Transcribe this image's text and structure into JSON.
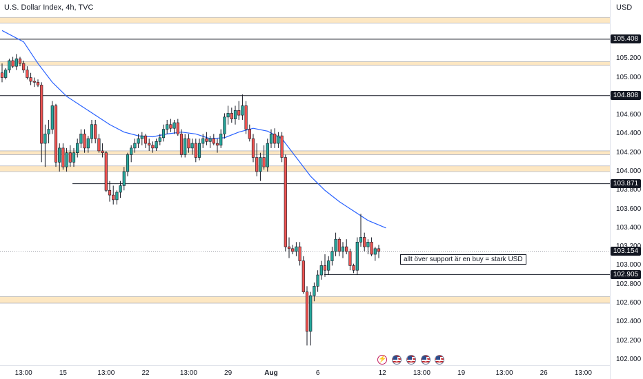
{
  "header": {
    "title": "U.S. Dollar Index, 4h, TVC",
    "currency": "USD"
  },
  "chart_data": {
    "type": "candlestick",
    "ylim": [
      101.94,
      105.825
    ],
    "y_ticks": [
      "105.200",
      "105.000",
      "104.600",
      "104.400",
      "104.200",
      "104.000",
      "103.800",
      "103.600",
      "103.400",
      "103.200",
      "103.000",
      "102.800",
      "102.600",
      "102.400",
      "102.200",
      "102.000"
    ],
    "x_ticks": [
      {
        "label": "13:00",
        "i": 6
      },
      {
        "label": "15",
        "i": 17
      },
      {
        "label": "13:00",
        "i": 29
      },
      {
        "label": "22",
        "i": 40
      },
      {
        "label": "13:00",
        "i": 52
      },
      {
        "label": "29",
        "i": 63
      },
      {
        "label": "Aug",
        "i": 75,
        "bold": true
      },
      {
        "label": "6",
        "i": 88
      },
      {
        "label": "12",
        "i": 106
      },
      {
        "label": "13:00",
        "i": 117
      },
      {
        "label": "19",
        "i": 128
      },
      {
        "label": "13:00",
        "i": 140
      },
      {
        "label": "26",
        "i": 151
      },
      {
        "label": "13:00",
        "i": 162
      }
    ],
    "horizontal_lines": [
      105.408,
      104.808,
      103.871,
      102.905
    ],
    "current_price_line": 103.154,
    "price_tags": [
      {
        "label": "105.408",
        "value": 105.408
      },
      {
        "label": "104.808",
        "value": 104.808
      },
      {
        "label": "103.871",
        "value": 103.871
      },
      {
        "label": "103.154",
        "value": 103.154
      },
      {
        "label": "102.905",
        "value": 102.905
      }
    ],
    "zones": [
      [
        105.58,
        105.64
      ],
      [
        105.13,
        105.17
      ],
      [
        104.18,
        104.22
      ],
      [
        104.0,
        104.06
      ],
      [
        102.6,
        102.67
      ]
    ],
    "annotation": "allt över support är en buy = stark USD",
    "candles": [
      [
        105.05,
        105.15,
        104.95,
        105.0
      ],
      [
        105.0,
        105.1,
        104.98,
        105.08
      ],
      [
        105.08,
        105.2,
        105.05,
        105.18
      ],
      [
        105.18,
        105.22,
        105.1,
        105.12
      ],
      [
        105.12,
        105.25,
        105.08,
        105.2
      ],
      [
        105.2,
        105.22,
        105.12,
        105.15
      ],
      [
        105.15,
        105.18,
        105.05,
        105.08
      ],
      [
        105.08,
        105.12,
        104.98,
        105.0
      ],
      [
        105.0,
        105.05,
        104.92,
        104.96
      ],
      [
        104.96,
        105.0,
        104.9,
        104.95
      ],
      [
        104.95,
        104.98,
        104.9,
        104.92
      ],
      [
        104.92,
        104.95,
        104.1,
        104.3
      ],
      [
        104.3,
        104.5,
        104.05,
        104.4
      ],
      [
        104.4,
        104.55,
        104.3,
        104.45
      ],
      [
        104.45,
        104.75,
        104.4,
        104.7
      ],
      [
        104.7,
        104.72,
        104.05,
        104.1
      ],
      [
        104.1,
        104.3,
        104.0,
        104.25
      ],
      [
        104.25,
        104.3,
        104.02,
        104.05
      ],
      [
        104.05,
        104.25,
        104.0,
        104.2
      ],
      [
        104.2,
        104.28,
        104.05,
        104.1
      ],
      [
        104.1,
        104.25,
        104.05,
        104.2
      ],
      [
        104.2,
        104.35,
        104.15,
        104.3
      ],
      [
        104.3,
        104.45,
        104.25,
        104.4
      ],
      [
        104.4,
        104.45,
        104.2,
        104.25
      ],
      [
        104.25,
        104.38,
        104.2,
        104.35
      ],
      [
        104.35,
        104.55,
        104.3,
        104.5
      ],
      [
        104.5,
        104.55,
        104.3,
        104.35
      ],
      [
        104.35,
        104.4,
        104.2,
        104.22
      ],
      [
        104.22,
        104.3,
        104.15,
        104.2
      ],
      [
        104.2,
        104.22,
        103.78,
        103.8
      ],
      [
        103.8,
        103.9,
        103.68,
        103.75
      ],
      [
        103.75,
        103.85,
        103.65,
        103.7
      ],
      [
        103.7,
        103.8,
        103.65,
        103.78
      ],
      [
        103.78,
        103.9,
        103.72,
        103.85
      ],
      [
        103.85,
        104.05,
        103.8,
        104.0
      ],
      [
        104.0,
        104.2,
        103.95,
        104.18
      ],
      [
        104.18,
        104.28,
        104.1,
        104.25
      ],
      [
        104.25,
        104.35,
        104.2,
        104.3
      ],
      [
        104.3,
        104.4,
        104.25,
        104.35
      ],
      [
        104.35,
        104.42,
        104.28,
        104.38
      ],
      [
        104.38,
        104.4,
        104.25,
        104.3
      ],
      [
        104.3,
        104.35,
        104.22,
        104.28
      ],
      [
        104.28,
        104.32,
        104.2,
        104.25
      ],
      [
        104.25,
        104.35,
        104.22,
        104.32
      ],
      [
        104.32,
        104.4,
        104.28,
        104.36
      ],
      [
        104.36,
        104.5,
        104.32,
        104.45
      ],
      [
        104.45,
        104.55,
        104.4,
        104.5
      ],
      [
        104.5,
        104.56,
        104.42,
        104.46
      ],
      [
        104.46,
        104.55,
        104.4,
        104.52
      ],
      [
        104.52,
        104.56,
        104.38,
        104.4
      ],
      [
        104.4,
        104.45,
        104.15,
        104.18
      ],
      [
        104.18,
        104.4,
        104.15,
        104.35
      ],
      [
        104.35,
        104.4,
        104.2,
        104.25
      ],
      [
        104.25,
        104.35,
        104.18,
        104.3
      ],
      [
        104.3,
        104.35,
        104.1,
        104.15
      ],
      [
        104.15,
        104.35,
        104.12,
        104.3
      ],
      [
        104.3,
        104.4,
        104.25,
        104.35
      ],
      [
        104.35,
        104.42,
        104.28,
        104.32
      ],
      [
        104.32,
        104.38,
        104.25,
        104.35
      ],
      [
        104.35,
        104.4,
        104.28,
        104.3
      ],
      [
        104.3,
        104.35,
        104.2,
        104.28
      ],
      [
        104.28,
        104.45,
        104.25,
        104.4
      ],
      [
        104.4,
        104.62,
        104.35,
        104.58
      ],
      [
        104.58,
        104.7,
        104.5,
        104.62
      ],
      [
        104.62,
        104.68,
        104.52,
        104.56
      ],
      [
        104.56,
        104.7,
        104.5,
        104.65
      ],
      [
        104.65,
        104.75,
        104.55,
        104.6
      ],
      [
        104.6,
        104.82,
        104.55,
        104.7
      ],
      [
        104.7,
        104.75,
        104.4,
        104.45
      ],
      [
        104.45,
        104.5,
        104.32,
        104.35
      ],
      [
        104.35,
        104.4,
        104.1,
        104.15
      ],
      [
        104.15,
        104.3,
        103.95,
        104.0
      ],
      [
        104.0,
        104.2,
        103.9,
        104.15
      ],
      [
        104.15,
        104.28,
        104.02,
        104.05
      ],
      [
        104.05,
        104.35,
        104.0,
        104.3
      ],
      [
        104.3,
        104.45,
        104.25,
        104.4
      ],
      [
        104.4,
        104.46,
        104.25,
        104.3
      ],
      [
        104.3,
        104.42,
        104.25,
        104.38
      ],
      [
        104.38,
        104.42,
        104.1,
        104.15
      ],
      [
        104.15,
        104.18,
        103.15,
        103.2
      ],
      [
        103.2,
        103.3,
        103.08,
        103.18
      ],
      [
        103.18,
        103.22,
        103.12,
        103.15
      ],
      [
        103.15,
        103.25,
        103.1,
        103.2
      ],
      [
        103.2,
        103.25,
        103.0,
        103.05
      ],
      [
        103.05,
        103.1,
        102.7,
        102.72
      ],
      [
        102.72,
        102.78,
        102.15,
        102.3
      ],
      [
        102.3,
        102.72,
        102.15,
        102.68
      ],
      [
        102.68,
        102.82,
        102.62,
        102.78
      ],
      [
        102.78,
        102.95,
        102.72,
        102.9
      ],
      [
        102.9,
        103.05,
        102.85,
        103.0
      ],
      [
        103.0,
        103.12,
        102.88,
        102.95
      ],
      [
        102.95,
        103.1,
        102.9,
        103.05
      ],
      [
        103.05,
        103.2,
        103.0,
        103.15
      ],
      [
        103.15,
        103.35,
        103.1,
        103.28
      ],
      [
        103.28,
        103.3,
        103.1,
        103.15
      ],
      [
        103.15,
        103.25,
        103.08,
        103.2
      ],
      [
        103.2,
        103.28,
        103.12,
        103.15
      ],
      [
        103.15,
        103.18,
        102.95,
        103.0
      ],
      [
        103.0,
        103.02,
        102.92,
        102.95
      ],
      [
        102.95,
        103.3,
        102.9,
        103.25
      ],
      [
        103.25,
        103.55,
        103.2,
        103.3
      ],
      [
        103.3,
        103.35,
        103.15,
        103.2
      ],
      [
        103.2,
        103.28,
        103.12,
        103.25
      ],
      [
        103.25,
        103.3,
        103.1,
        103.12
      ],
      [
        103.12,
        103.2,
        103.05,
        103.18
      ],
      [
        103.18,
        103.22,
        103.08,
        103.15
      ]
    ],
    "moving_average": [
      [
        0,
        105.5
      ],
      [
        6,
        105.38
      ],
      [
        10,
        105.15
      ],
      [
        14,
        104.95
      ],
      [
        18,
        104.8
      ],
      [
        22,
        104.7
      ],
      [
        26,
        104.6
      ],
      [
        30,
        104.5
      ],
      [
        34,
        104.42
      ],
      [
        38,
        104.38
      ],
      [
        42,
        104.37
      ],
      [
        46,
        104.4
      ],
      [
        50,
        104.42
      ],
      [
        54,
        104.4
      ],
      [
        58,
        104.35
      ],
      [
        62,
        104.36
      ],
      [
        66,
        104.42
      ],
      [
        70,
        104.46
      ],
      [
        74,
        104.43
      ],
      [
        78,
        104.35
      ],
      [
        82,
        104.15
      ],
      [
        86,
        103.95
      ],
      [
        90,
        103.8
      ],
      [
        94,
        103.68
      ],
      [
        98,
        103.58
      ],
      [
        102,
        103.48
      ],
      [
        107,
        103.4
      ]
    ]
  },
  "event_icons": [
    {
      "name": "dividend-bolt-icon",
      "i": 106,
      "type": "bolt"
    },
    {
      "name": "us-flag-icon-1",
      "i": 110,
      "type": "flag"
    },
    {
      "name": "us-flag-icon-2",
      "i": 114,
      "type": "flag"
    },
    {
      "name": "us-flag-icon-3",
      "i": 118,
      "type": "flag"
    },
    {
      "name": "us-flag-icon-4",
      "i": 122,
      "type": "flag"
    }
  ],
  "colors": {
    "up": "#26a69a",
    "down": "#ef5350",
    "wick": "#131722",
    "ma": "#2962ff",
    "zone": "#fde7c2",
    "line": "#131722"
  }
}
